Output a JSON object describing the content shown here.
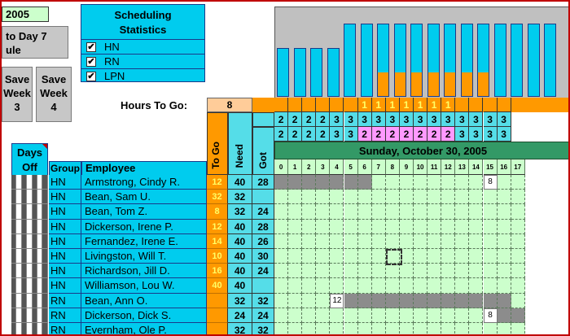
{
  "year_cell": "2005",
  "left_button": {
    "line1": "to Day 7",
    "line2": "ule"
  },
  "save_buttons": [
    {
      "lines": [
        "Save",
        "Week",
        "3"
      ]
    },
    {
      "lines": [
        "Save",
        "Week",
        "4"
      ]
    }
  ],
  "stats": {
    "title_line1": "Scheduling",
    "title_line2": "Statistics",
    "items": [
      {
        "label": "HN",
        "checked": true
      },
      {
        "label": "RN",
        "checked": true
      },
      {
        "label": "LPN",
        "checked": true
      }
    ]
  },
  "hours_to_go": {
    "label": "Hours To Go:",
    "value": "8"
  },
  "bars": {
    "max": 3,
    "total": [
      2,
      2,
      2,
      2,
      3,
      3,
      3,
      3,
      3,
      3,
      3,
      3,
      3,
      3,
      3,
      3,
      3
    ],
    "staffed": [
      2,
      2,
      2,
      2,
      3,
      3,
      2,
      2,
      2,
      2,
      2,
      2,
      2,
      3,
      3,
      3,
      3
    ]
  },
  "ones_row": [
    "",
    "",
    "",
    "",
    "",
    "",
    "1",
    "1",
    "1",
    "1",
    "1",
    "1",
    "1",
    "",
    "",
    "",
    ""
  ],
  "need_row": [
    "2",
    "2",
    "2",
    "2",
    "3",
    "3",
    "3",
    "3",
    "3",
    "3",
    "3",
    "3",
    "3",
    "3",
    "3",
    "3",
    "3"
  ],
  "got_row": [
    "2",
    "2",
    "2",
    "2",
    "3",
    "3",
    "2",
    "2",
    "2",
    "2",
    "2",
    "2",
    "2",
    "3",
    "3",
    "3",
    "3"
  ],
  "date_header": "Sunday, October 30, 2005",
  "hours": [
    "0",
    "1",
    "2",
    "3",
    "4",
    "5",
    "6",
    "7",
    "8",
    "9",
    "10",
    "11",
    "12",
    "13",
    "14",
    "15",
    "16",
    "17"
  ],
  "col_headers": {
    "days_off_1": "Days",
    "days_off_2": "Off",
    "group": "Group",
    "employee": "Employee",
    "to_go": "To Go",
    "need": "Need",
    "got": "Got"
  },
  "employees": [
    {
      "group": "HN",
      "name": "Armstrong, Cindy R.",
      "to_go": "12",
      "need": "40",
      "got": "28",
      "shift": [
        0,
        7
      ],
      "num": {
        "hour": 15,
        "text": "8"
      }
    },
    {
      "group": "HN",
      "name": "Bean, Sam U.",
      "to_go": "32",
      "need": "32",
      "got": "",
      "shift": null,
      "num": null
    },
    {
      "group": "HN",
      "name": "Bean, Tom Z.",
      "to_go": "8",
      "need": "32",
      "got": "24",
      "shift": null,
      "num": null
    },
    {
      "group": "HN",
      "name": "Dickerson, Irene P.",
      "to_go": "12",
      "need": "40",
      "got": "28",
      "shift": null,
      "num": null
    },
    {
      "group": "HN",
      "name": "Fernandez, Irene E.",
      "to_go": "14",
      "need": "40",
      "got": "26",
      "shift": null,
      "num": null
    },
    {
      "group": "HN",
      "name": "Livingston, Will T.",
      "to_go": "10",
      "need": "40",
      "got": "30",
      "shift": null,
      "num": null
    },
    {
      "group": "HN",
      "name": "Richardson, Jill D.",
      "to_go": "16",
      "need": "40",
      "got": "24",
      "shift": null,
      "num": null
    },
    {
      "group": "HN",
      "name": "Williamson, Lou W.",
      "to_go": "40",
      "need": "40",
      "got": "",
      "shift": null,
      "num": null
    },
    {
      "group": "RN",
      "name": "Bean, Ann O.",
      "to_go": "",
      "need": "32",
      "got": "32",
      "shift": [
        5,
        17
      ],
      "num": {
        "hour": 4,
        "text": "12"
      }
    },
    {
      "group": "RN",
      "name": "Dickerson, Dick S.",
      "to_go": "",
      "need": "24",
      "got": "24",
      "shift": [
        16,
        18
      ],
      "num": {
        "hour": 15,
        "text": "8"
      }
    },
    {
      "group": "RN",
      "name": "Evernham, Ole P.",
      "to_go": "",
      "need": "32",
      "got": "32",
      "shift": null,
      "num": null
    }
  ],
  "colors": {
    "cyan": "#00ccee",
    "orange": "#ff9900",
    "pink": "#ff99ff",
    "green_header": "#339966",
    "grid_bg": "#ccffcc",
    "shift_gray": "#8c8c8c",
    "border_red": "#c00000"
  }
}
